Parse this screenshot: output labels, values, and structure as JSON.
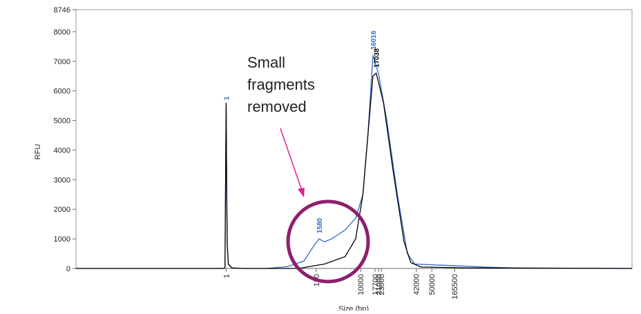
{
  "chart_data": {
    "type": "line",
    "ylabel": "RFU",
    "xlabel": "Size (bp)",
    "ylim": [
      0,
      8746
    ],
    "yticks": [
      0,
      1000,
      2000,
      3000,
      4000,
      5000,
      6000,
      7000,
      8000,
      8746
    ],
    "xlim": [
      0,
      1000
    ],
    "xticks": [
      {
        "value": 270,
        "label": "1"
      },
      {
        "value": 432,
        "label": "130"
      },
      {
        "value": 512,
        "label": "10000"
      },
      {
        "value": 538,
        "label": "17700"
      },
      {
        "value": 544,
        "label": "21000"
      },
      {
        "value": 549,
        "label": "23000"
      },
      {
        "value": 612,
        "label": "42000"
      },
      {
        "value": 640,
        "label": "50000"
      },
      {
        "value": 681,
        "label": "165500"
      }
    ],
    "series": [
      {
        "name": "blue",
        "color": "#3366cc",
        "x": [
          0,
          266,
          268,
          270,
          271,
          272,
          274,
          280,
          300,
          342,
          380,
          410,
          429,
          437,
          447,
          460,
          484,
          503,
          516,
          525,
          534,
          544,
          559,
          578,
          596,
          609,
          671,
          733,
          800,
          1000
        ],
        "values": [
          0,
          0,
          50,
          5500,
          2500,
          800,
          150,
          20,
          0,
          0,
          60,
          250,
          800,
          1000,
          900,
          1000,
          1300,
          1700,
          2500,
          4500,
          7200,
          6600,
          5000,
          2500,
          500,
          150,
          100,
          50,
          10,
          0
        ],
        "peaks": [
          {
            "x": 270,
            "label": "1"
          },
          {
            "x": 437,
            "label": "1580"
          },
          {
            "x": 534,
            "label": "16016"
          }
        ]
      },
      {
        "name": "black",
        "color": "#000000",
        "x": [
          0,
          266,
          268,
          270,
          271,
          272,
          274,
          280,
          300,
          400,
          447,
          484,
          503,
          516,
          525,
          534,
          540,
          553,
          571,
          590,
          602,
          620,
          700,
          1000
        ],
        "values": [
          0,
          0,
          50,
          5600,
          2500,
          800,
          150,
          20,
          0,
          0,
          150,
          400,
          1000,
          2500,
          4500,
          6500,
          6600,
          5600,
          3200,
          900,
          200,
          50,
          20,
          0
        ],
        "peaks": [
          {
            "x": 540,
            "label": "17038"
          }
        ]
      }
    ]
  },
  "annotation": {
    "lines": [
      "Small",
      "fragments",
      "removed"
    ]
  }
}
